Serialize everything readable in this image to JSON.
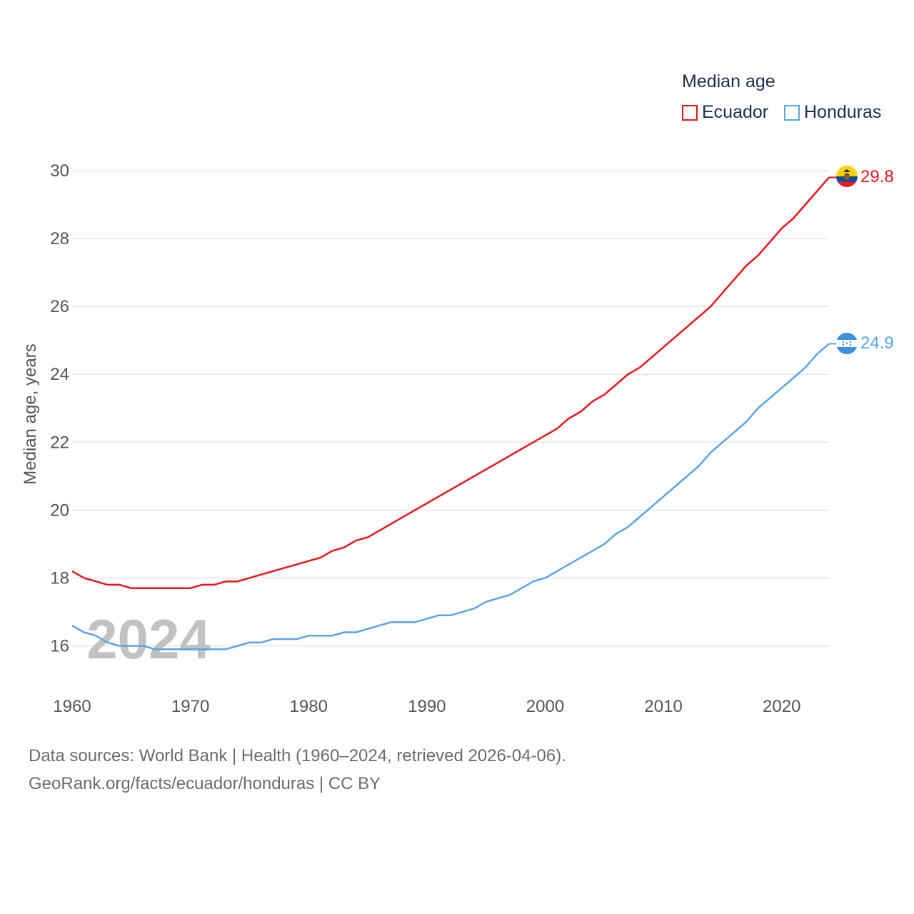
{
  "legend": {
    "title": "Median age",
    "items": [
      {
        "label": "Ecuador",
        "color": "#e8151b"
      },
      {
        "label": "Honduras",
        "color": "#5ba4e6"
      }
    ]
  },
  "source": {
    "line1": "Data sources: World Bank | Health (1960–2024, retrieved 2026-04-06).",
    "line2": "GeoRank.org/facts/ecuador/honduras | CC BY"
  },
  "chart_data": {
    "type": "line",
    "title": "Median age",
    "xlabel": "",
    "ylabel": "Median age, years",
    "xlim": [
      1960,
      2024
    ],
    "ylim": [
      15,
      30
    ],
    "x_ticks": [
      1960,
      1970,
      1980,
      1990,
      2000,
      2010,
      2020
    ],
    "y_ticks": [
      16,
      18,
      20,
      22,
      24,
      26,
      28,
      30
    ],
    "year_watermark": "2024",
    "grid": true,
    "legend_position": "top-right",
    "x": [
      1960,
      1961,
      1962,
      1963,
      1964,
      1965,
      1966,
      1967,
      1968,
      1969,
      1970,
      1971,
      1972,
      1973,
      1974,
      1975,
      1976,
      1977,
      1978,
      1979,
      1980,
      1981,
      1982,
      1983,
      1984,
      1985,
      1986,
      1987,
      1988,
      1989,
      1990,
      1991,
      1992,
      1993,
      1994,
      1995,
      1996,
      1997,
      1998,
      1999,
      2000,
      2001,
      2002,
      2003,
      2004,
      2005,
      2006,
      2007,
      2008,
      2009,
      2010,
      2011,
      2012,
      2013,
      2014,
      2015,
      2016,
      2017,
      2018,
      2019,
      2020,
      2021,
      2022,
      2023,
      2024
    ],
    "series": [
      {
        "name": "Ecuador",
        "color": "#e8151b",
        "end_label": "29.8",
        "values": [
          18.2,
          18.0,
          17.9,
          17.8,
          17.8,
          17.7,
          17.7,
          17.7,
          17.7,
          17.7,
          17.7,
          17.8,
          17.8,
          17.9,
          17.9,
          18.0,
          18.1,
          18.2,
          18.3,
          18.4,
          18.5,
          18.6,
          18.8,
          18.9,
          19.1,
          19.2,
          19.4,
          19.6,
          19.8,
          20.0,
          20.2,
          20.4,
          20.6,
          20.8,
          21.0,
          21.2,
          21.4,
          21.6,
          21.8,
          22.0,
          22.2,
          22.4,
          22.7,
          22.9,
          23.2,
          23.4,
          23.7,
          24.0,
          24.2,
          24.5,
          24.8,
          25.1,
          25.4,
          25.7,
          26.0,
          26.4,
          26.8,
          27.2,
          27.5,
          27.9,
          28.3,
          28.6,
          29.0,
          29.4,
          29.8
        ]
      },
      {
        "name": "Honduras",
        "color": "#5ba4e6",
        "end_label": "24.9",
        "values": [
          16.6,
          16.4,
          16.3,
          16.1,
          16.0,
          16.0,
          16.0,
          15.9,
          15.9,
          15.9,
          15.9,
          15.9,
          15.9,
          15.9,
          16.0,
          16.1,
          16.1,
          16.2,
          16.2,
          16.2,
          16.3,
          16.3,
          16.3,
          16.4,
          16.4,
          16.5,
          16.6,
          16.7,
          16.7,
          16.7,
          16.8,
          16.9,
          16.9,
          17.0,
          17.1,
          17.3,
          17.4,
          17.5,
          17.7,
          17.9,
          18.0,
          18.2,
          18.4,
          18.6,
          18.8,
          19.0,
          19.3,
          19.5,
          19.8,
          20.1,
          20.4,
          20.7,
          21.0,
          21.3,
          21.7,
          22.0,
          22.3,
          22.6,
          23.0,
          23.3,
          23.6,
          23.9,
          24.2,
          24.6,
          24.9
        ]
      }
    ]
  }
}
